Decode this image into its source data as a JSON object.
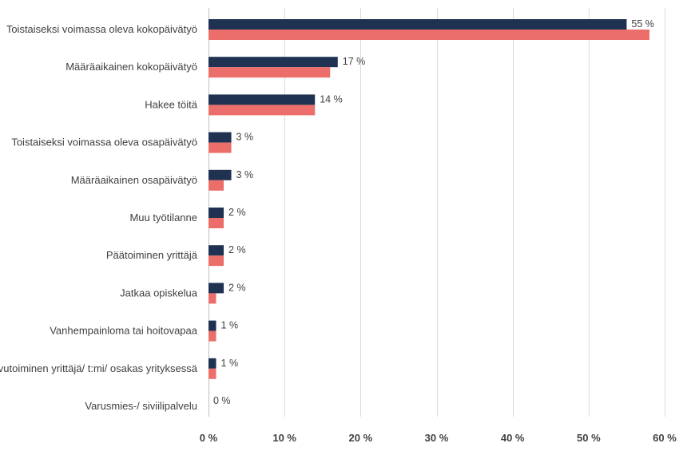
{
  "chart_data": {
    "type": "bar",
    "orientation": "horizontal",
    "categories": [
      "Toistaiseksi voimassa oleva kokopäivätyö",
      "Määräaikainen kokopäivätyö",
      "Hakee töitä",
      "Toistaiseksi voimassa oleva osapäivätyö",
      "Määräaikainen osapäivätyö",
      "Muu työtilanne",
      "Päätoiminen yrittäjä",
      "Jatkaa opiskelua",
      "Vanhempainloma tai hoitovapaa",
      "Sivutoiminen yrittäjä/ t:mi/ osakas yrityksessä",
      "Varusmies-/ siviilipalvelu"
    ],
    "series": [
      {
        "color": "#1f3251",
        "values": [
          55,
          17,
          14,
          3,
          3,
          2,
          2,
          2,
          1,
          1,
          0
        ],
        "data_labels": [
          "55 %",
          "17 %",
          "14 %",
          "3 %",
          "3 %",
          "2 %",
          "2 %",
          "2 %",
          "1 %",
          "1 %",
          "0 %"
        ]
      },
      {
        "color": "#ec6e6a",
        "values": [
          58,
          16,
          14,
          3,
          2,
          2,
          2,
          1,
          1,
          1,
          0
        ]
      }
    ],
    "x_ticks": [
      "0 %",
      "10 %",
      "20 %",
      "30 %",
      "40 %",
      "50 %",
      "60 %"
    ],
    "xlim": [
      0,
      60
    ],
    "xlabel": "",
    "ylabel": "",
    "title": "",
    "grid": true,
    "legend": "none"
  }
}
